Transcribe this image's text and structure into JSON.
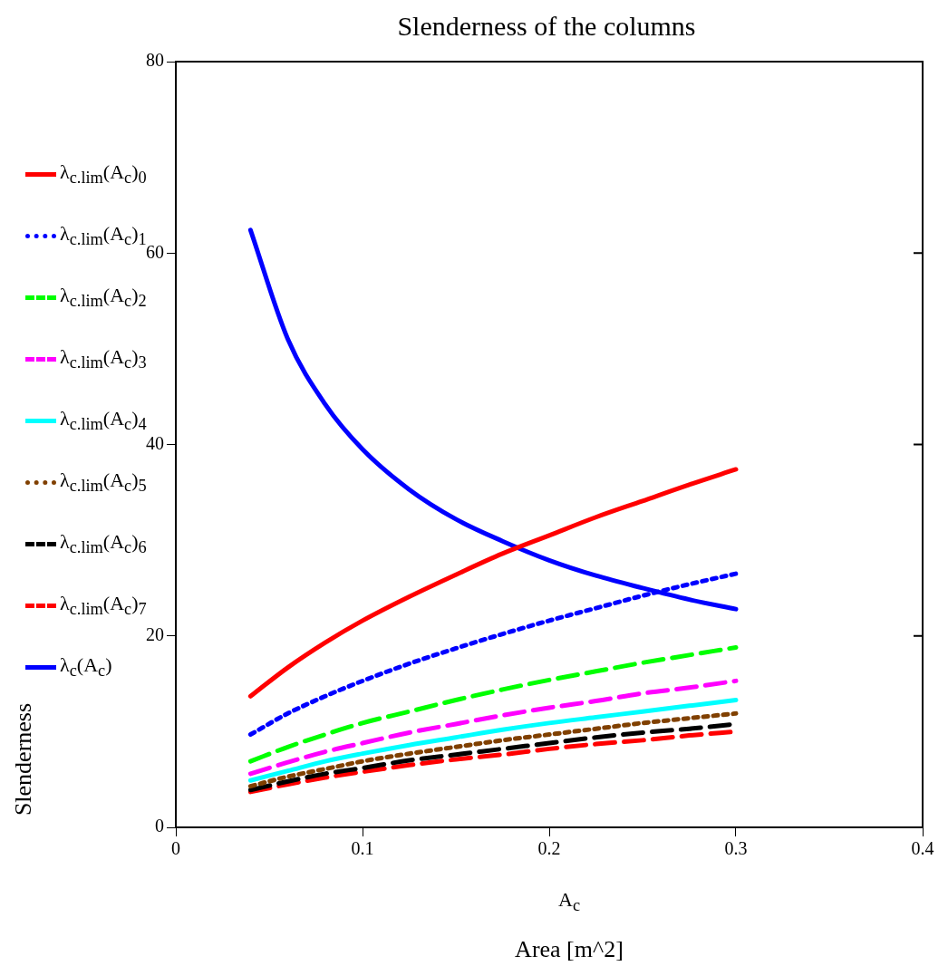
{
  "chart_data": {
    "type": "line",
    "title": "Slenderness of the columns",
    "xlabel": "A$_{c}$",
    "ylabel": "Slenderness",
    "annotations": [
      "Area [m^2]"
    ],
    "x": [
      0.04,
      0.06,
      0.08,
      0.1,
      0.125,
      0.15,
      0.175,
      0.2,
      0.225,
      0.25,
      0.275,
      0.3
    ],
    "xlim": [
      0,
      0.4
    ],
    "xticks": [
      0,
      0.1,
      0.2,
      0.3,
      0.4
    ],
    "ylim": [
      0,
      80
    ],
    "yticks": [
      0,
      20,
      40,
      60,
      80
    ],
    "grid": false,
    "legend": "left",
    "marker": "none",
    "series": [
      {
        "name": "λ$_{c.lim}$(A$_{c}$)$_{0}$",
        "color": "#ff0000",
        "line_style": "solid",
        "values": [
          13.7,
          16.7,
          19.3,
          21.6,
          24.1,
          26.4,
          28.6,
          30.5,
          32.4,
          34.1,
          35.8,
          37.4
        ]
      },
      {
        "name": "λ$_{c.lim}$(A$_{c}$)$_{1}$",
        "color": "#0000ff",
        "line_style": "dotted",
        "values": [
          9.7,
          11.9,
          13.7,
          15.3,
          17.1,
          18.7,
          20.2,
          21.6,
          22.9,
          24.2,
          25.4,
          26.5
        ]
      },
      {
        "name": "λ$_{c.lim}$(A$_{c}$)$_{2}$",
        "color": "#00ff00",
        "line_style": "dashed",
        "values": [
          6.9,
          8.4,
          9.7,
          10.9,
          12.1,
          13.3,
          14.4,
          15.4,
          16.3,
          17.2,
          18.0,
          18.8
        ]
      },
      {
        "name": "λ$_{c.lim}$(A$_{c}$)$_{3}$",
        "color": "#ff00ff",
        "line_style": "dashed",
        "values": [
          5.6,
          6.8,
          7.9,
          8.8,
          9.9,
          10.8,
          11.7,
          12.5,
          13.2,
          14.0,
          14.6,
          15.3
        ]
      },
      {
        "name": "λ$_{c.lim}$(A$_{c}$)$_{4}$",
        "color": "#00ffff",
        "line_style": "solid",
        "values": [
          4.9,
          5.9,
          6.9,
          7.7,
          8.6,
          9.4,
          10.2,
          10.9,
          11.5,
          12.1,
          12.7,
          13.3
        ]
      },
      {
        "name": "λ$_{c.lim}$(A$_{c}$)$_{5}$",
        "color": "#804000",
        "line_style": "dotted",
        "values": [
          4.3,
          5.3,
          6.1,
          6.9,
          7.7,
          8.4,
          9.1,
          9.7,
          10.3,
          10.9,
          11.4,
          11.9
        ]
      },
      {
        "name": "λ$_{c.lim}$(A$_{c}$)$_{6}$",
        "color": "#000000",
        "line_style": "dashed",
        "values": [
          3.9,
          4.8,
          5.6,
          6.2,
          7.0,
          7.6,
          8.2,
          8.8,
          9.4,
          9.9,
          10.3,
          10.8
        ]
      },
      {
        "name": "λ$_{c.lim}$(A$_{c}$)$_{7}$",
        "color": "#ff0000",
        "line_style": "dashed",
        "values": [
          3.7,
          4.5,
          5.2,
          5.8,
          6.5,
          7.1,
          7.6,
          8.2,
          8.7,
          9.1,
          9.6,
          10.0
        ]
      },
      {
        "name": "λ$_{c}$(A$_{c}$)",
        "color": "#0000ff",
        "line_style": "solid",
        "values": [
          62.4,
          51.0,
          44.2,
          39.5,
          35.3,
          32.2,
          29.9,
          27.9,
          26.3,
          25.0,
          23.8,
          22.8
        ]
      }
    ]
  }
}
